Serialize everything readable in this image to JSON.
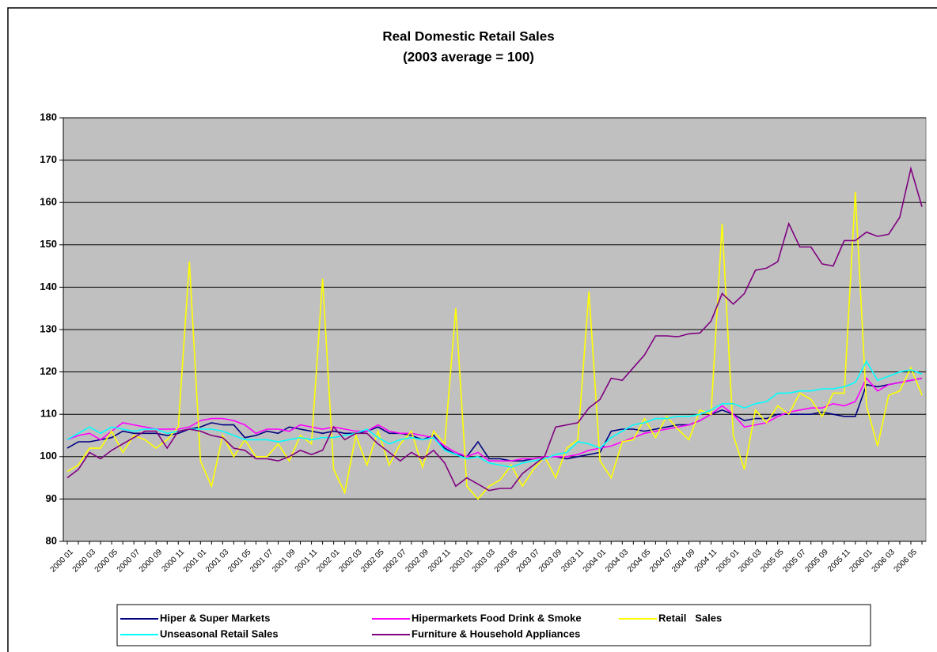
{
  "chart_data": {
    "type": "line",
    "title": "Real Domestic Retail Sales",
    "subtitle": "(2003 average = 100)",
    "categories": [
      "2000 01",
      null,
      "2000 03",
      null,
      "2000 05",
      null,
      "2000 07",
      null,
      "2000 09",
      null,
      "2000 11",
      null,
      "2001 01",
      null,
      "2001 03",
      null,
      "2001 05",
      null,
      "2001 07",
      null,
      "2001 09",
      null,
      "2001 11",
      null,
      "2002 01",
      null,
      "2002 03",
      null,
      "2002 05",
      null,
      "2002 07",
      null,
      "2002 09",
      null,
      "2002 11",
      null,
      "2003 01",
      null,
      "2003 03",
      null,
      "2003 05",
      null,
      "2003 07",
      null,
      "2003 09",
      null,
      "2003 11",
      null,
      "2004 01",
      null,
      "2004 03",
      null,
      "2004 05",
      null,
      "2004 07",
      null,
      "2004 09",
      null,
      "2004 11",
      null,
      "2005 01",
      null,
      "2005 03",
      null,
      "2005 05",
      null,
      "2005 07",
      null,
      "2005 09",
      null,
      "2005 11",
      null,
      "2006 01",
      null,
      "2006 03",
      null,
      "2006 05",
      null
    ],
    "ylim": [
      80,
      180
    ],
    "yticks": [
      80,
      90,
      100,
      110,
      120,
      130,
      140,
      150,
      160,
      170,
      180
    ],
    "grid": true,
    "series": [
      {
        "name": "Hiper & Super Markets",
        "color": "#000080",
        "values": [
          102,
          103.5,
          103.5,
          104,
          104.5,
          106,
          105.5,
          105.5,
          105.5,
          105,
          105.5,
          106.5,
          107,
          108,
          107.5,
          107.5,
          104.5,
          105,
          106,
          105.5,
          107,
          106.5,
          106,
          105.5,
          106,
          105.5,
          105.5,
          106,
          107,
          105.5,
          105.5,
          105,
          104,
          105,
          102,
          100.5,
          100,
          103.5,
          99.5,
          99.5,
          99,
          99,
          99.5,
          100,
          100,
          99.5,
          100,
          100.5,
          101,
          106,
          106.5,
          106.5,
          106,
          106.5,
          107,
          107.5,
          107.5,
          108.5,
          110,
          111,
          110,
          108.5,
          109,
          109,
          110,
          110,
          110,
          110,
          110.5,
          110,
          109.5,
          109.5,
          117,
          116.5,
          117,
          117.5,
          118,
          118.5
        ]
      },
      {
        "name": "Hipermarkets Food Drink & Smoke",
        "color": "#ff00ff",
        "values": [
          104,
          105,
          105.5,
          104,
          106,
          108,
          107.5,
          107,
          106.5,
          106.5,
          106.5,
          107,
          108.5,
          109,
          109,
          108.5,
          107.5,
          105.5,
          106.5,
          106.5,
          106,
          107.5,
          107,
          106.5,
          107,
          106.5,
          106,
          106,
          107.5,
          106,
          105.5,
          105.5,
          105,
          104.5,
          102.5,
          101,
          100,
          101,
          99,
          99,
          99,
          99.5,
          99.5,
          100,
          100,
          100,
          100.5,
          101.5,
          102,
          102.5,
          103.5,
          104.5,
          105.5,
          106,
          106.5,
          107,
          107.5,
          108.5,
          110,
          112,
          110,
          107,
          107.5,
          108,
          109.5,
          110.5,
          111,
          111.5,
          111.5,
          112.5,
          112,
          113,
          118.5,
          115.5,
          117,
          117.5,
          118,
          118.5
        ]
      },
      {
        "name": "Retail   Sales",
        "color": "#ffff00",
        "values": [
          96.5,
          98,
          102,
          102,
          106,
          101,
          105,
          104,
          102,
          104,
          107,
          146,
          99,
          93,
          105,
          100,
          104,
          100,
          100,
          103,
          99,
          105,
          103,
          142,
          97,
          91.5,
          105,
          98,
          106,
          98,
          103,
          106,
          97.5,
          106,
          103,
          135,
          93,
          90,
          93,
          94.5,
          98,
          93,
          97,
          100,
          95,
          102,
          104,
          139,
          99,
          95,
          103.5,
          104,
          109,
          104.5,
          109.5,
          106.5,
          104,
          111,
          110,
          155,
          105,
          97,
          111,
          108,
          112,
          110,
          115,
          113.5,
          109.5,
          115,
          115,
          162.5,
          112,
          102.5,
          114.5,
          115.5,
          121,
          114.5
        ]
      },
      {
        "name": "Unseasonal Retail Sales",
        "color": "#00ffff",
        "values": [
          104,
          105.5,
          107,
          105.5,
          107,
          106.5,
          106,
          106.5,
          106.5,
          105.5,
          106,
          106.5,
          106.5,
          106.5,
          106,
          105,
          104,
          104,
          104,
          103.5,
          104,
          104.5,
          104,
          104.5,
          104.5,
          105,
          105.5,
          106.5,
          104.5,
          103,
          104,
          104.5,
          104,
          104.5,
          101.5,
          100.5,
          99.5,
          100,
          98.5,
          98,
          97.5,
          98.5,
          99,
          99.5,
          100.5,
          101,
          103.5,
          103,
          102,
          104.5,
          106,
          107.5,
          108,
          109,
          109,
          109.5,
          109.5,
          110,
          111,
          112.5,
          112.5,
          111.5,
          112.5,
          113,
          115,
          115,
          115.5,
          115.5,
          116,
          116,
          116.5,
          117.5,
          122.5,
          118,
          119,
          120,
          120.5,
          119.5
        ]
      },
      {
        "name": "Furniture & Household Appliances",
        "color": "#800080",
        "values": [
          95,
          97,
          101,
          99.5,
          101.5,
          103,
          104.5,
          106,
          106,
          102,
          106,
          106.5,
          106,
          105,
          104.5,
          102,
          101.5,
          99.5,
          99.5,
          99,
          100,
          101.5,
          100.5,
          101.5,
          107,
          104,
          105.5,
          105.5,
          103,
          101,
          99,
          101,
          99.5,
          101.5,
          98.5,
          93,
          95,
          93.5,
          92,
          92.5,
          92.5,
          96,
          98,
          100,
          107,
          107.5,
          108,
          111.5,
          113.5,
          118.5,
          118,
          121,
          124,
          128.5,
          128.5,
          128.3,
          129,
          129.2,
          132,
          138.5,
          136,
          138.5,
          144,
          144.5,
          146,
          155,
          149.5,
          149.5,
          145.5,
          145,
          151,
          151,
          153,
          152,
          152.5,
          156.5,
          168,
          159
        ]
      }
    ]
  }
}
